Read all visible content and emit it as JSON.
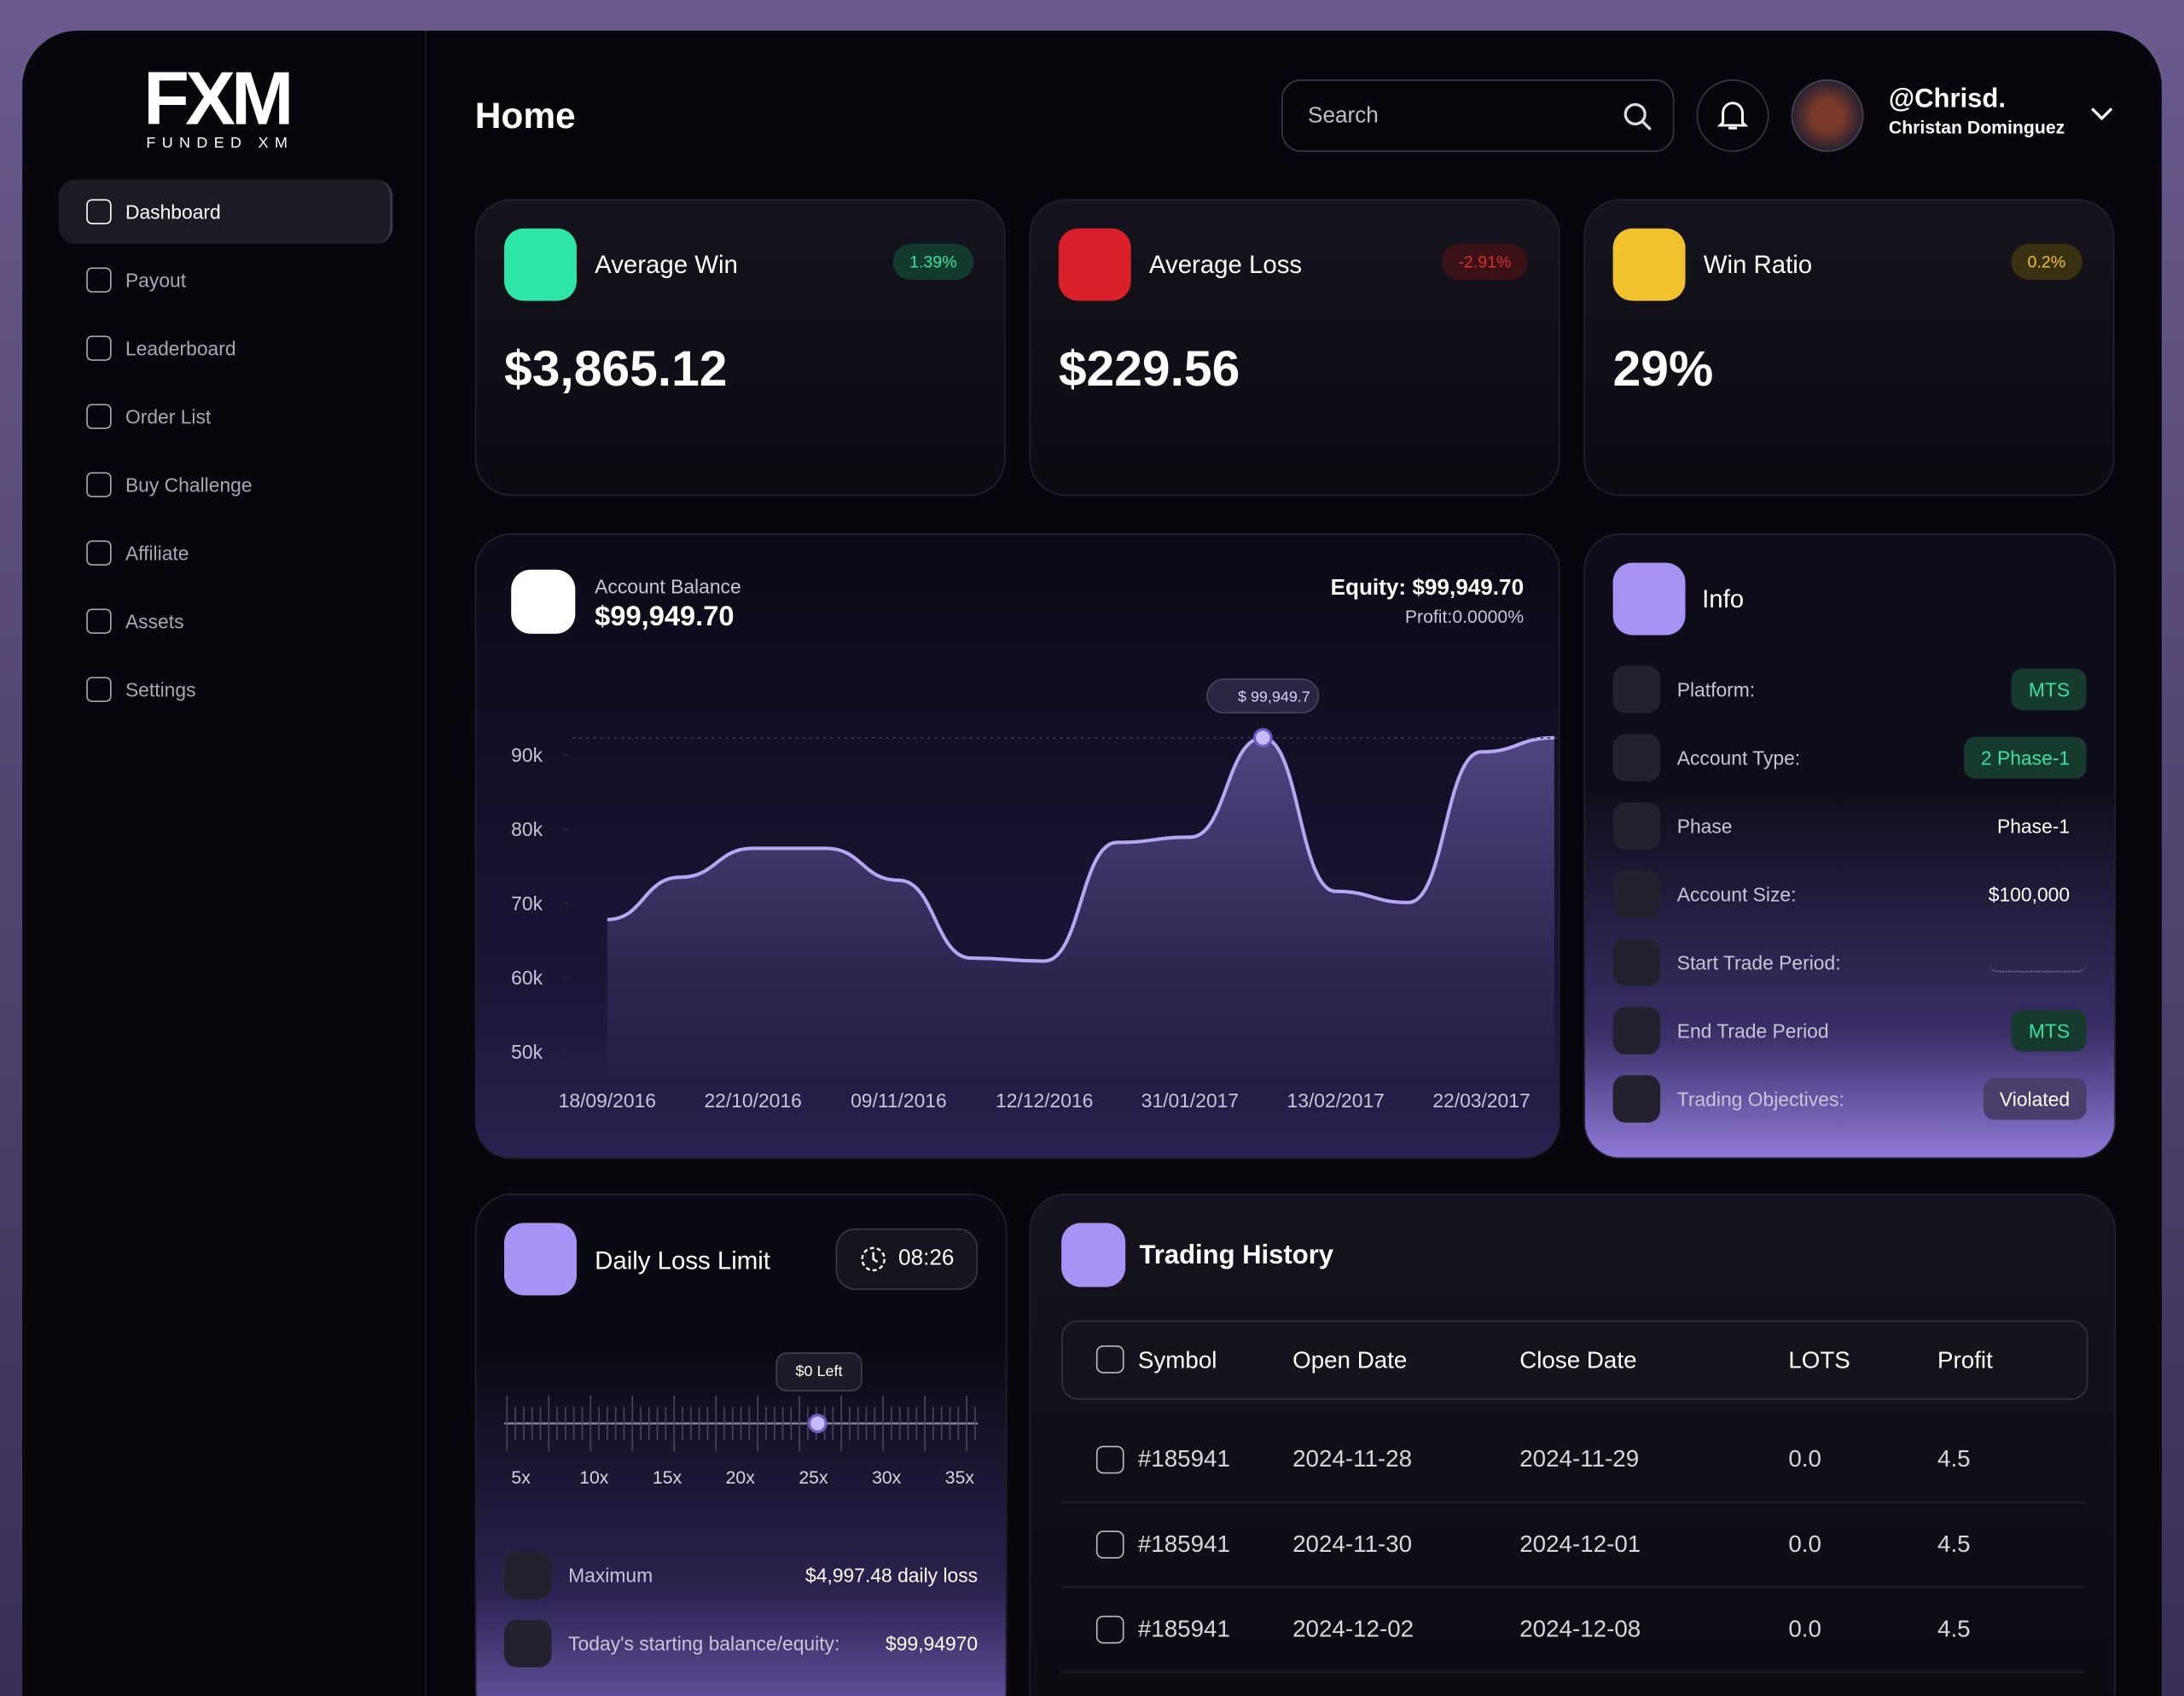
{
  "logo": {
    "mark": "FXM",
    "name": "FUNDED XM"
  },
  "sidebar": {
    "nav": [
      "Dashboard",
      "Payout",
      "Leaderboard",
      "Order List",
      "Buy Challenge",
      "Affiliate",
      "Assets",
      "Settings"
    ]
  },
  "header": {
    "title": "Home",
    "search": "Search",
    "user_handle": "@Chrisd.",
    "user_name": "Christan Dominguez"
  },
  "stats": [
    {
      "title": "Average Win",
      "value": "$3,865.12",
      "change": "1.39%"
    },
    {
      "title": "Average Loss",
      "value": "$229.56",
      "change": "-2.91%"
    },
    {
      "title": "Win Ratio",
      "value": "29%",
      "change": "0.2%"
    }
  ],
  "balance": {
    "label": "Account Balance",
    "value": "$99,949.70",
    "equity": "Equity: $99,949.70",
    "profit": "Profit:0.0000%"
  },
  "chart_data": {
    "type": "line",
    "categories": [
      "18/09/2016",
      null,
      "22/10/2016",
      null,
      "09/11/2016",
      null,
      "12/12/2016",
      null,
      "31/01/2017",
      null,
      "13/02/2017",
      null,
      "22/03/2017",
      null
    ],
    "series": [
      {
        "name": "Account Balance",
        "color": "#b7a6f2",
        "values": [
          67800,
          73500,
          77400,
          77400,
          73100,
          62600,
          62200,
          78200,
          78900,
          92300,
          71600,
          70100,
          90400,
          92300
        ]
      }
    ],
    "ylim": [
      47000,
      99000
    ],
    "yticks": [
      {
        "value": 50000,
        "label": "50k"
      },
      {
        "value": 60000,
        "label": "60k"
      },
      {
        "value": 70000,
        "label": "70k"
      },
      {
        "value": 80000,
        "label": "80k"
      },
      {
        "value": 90000,
        "label": "90k"
      }
    ],
    "annotation": "$ 99,949.7"
  },
  "info": {
    "title": "Info",
    "rows": [
      {
        "label": "Platform:",
        "value": "MTS"
      },
      {
        "label": "Account Type:",
        "value": "2 Phase-1"
      },
      {
        "label": "Phase",
        "value": "Phase-1"
      },
      {
        "label": "Account Size:",
        "value": "$100,000"
      },
      {
        "label": "Start Trade Period:"
      },
      {
        "label": "End Trade Period",
        "value": "MTS"
      },
      {
        "label": "Trading Objectives:",
        "value": "Violated"
      }
    ]
  },
  "daily_loss": {
    "title": "Daily Loss Limit",
    "timer": "08:26",
    "bubble": "$0 Left",
    "scale": [
      "5x",
      "10x",
      "15x",
      "20x",
      "25x",
      "30x",
      "35x"
    ],
    "rows": [
      {
        "label": "Maximum",
        "value": "$4,997.48 daily loss"
      },
      {
        "label": "Today's starting balance/equity:",
        "value": "$99,94970"
      }
    ]
  },
  "trading_history": {
    "title": "Trading History",
    "columns": [
      "Symbol",
      "Open Date",
      "Close Date",
      "LOTS",
      "Profit"
    ],
    "rows": [
      [
        "#185941",
        "2024-11-28",
        "2024-11-29",
        "0.0",
        "4.5"
      ],
      [
        "#185941",
        "2024-11-30",
        "2024-12-01",
        "0.0",
        "4.5"
      ],
      [
        "#185941",
        "2024-12-02",
        "2024-12-08",
        "0.0",
        "4.5"
      ]
    ]
  }
}
